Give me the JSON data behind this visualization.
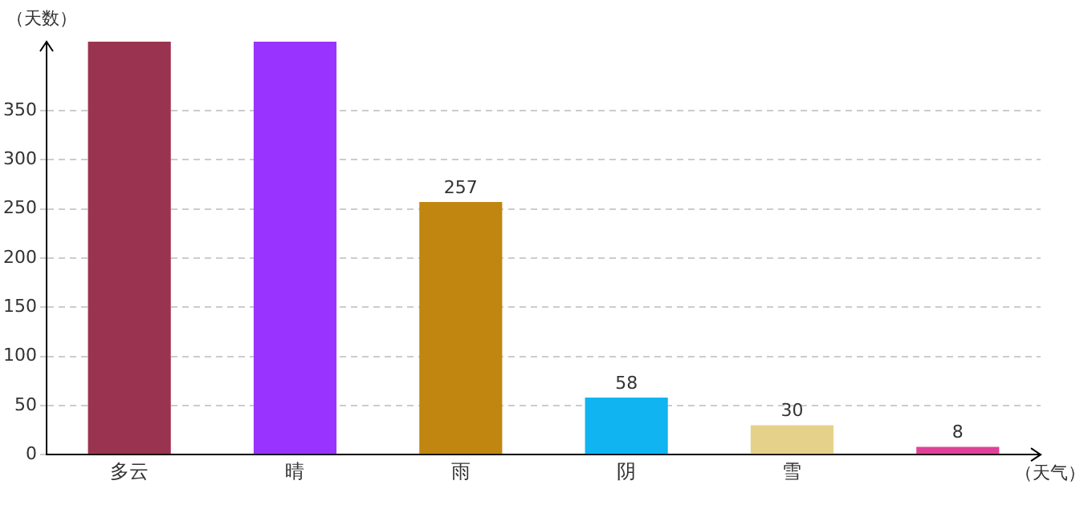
{
  "chart_data": {
    "type": "bar",
    "xlabel": "（天气）",
    "ylabel": "（天数）",
    "categories": [
      "多云",
      "晴",
      "雨",
      "阴",
      "雪",
      null
    ],
    "values": [
      420,
      420,
      257,
      58,
      30,
      8
    ],
    "value_labels": [
      null,
      null,
      "257",
      "58",
      "30",
      "8"
    ],
    "colors": [
      "#993350",
      "#9933ff",
      "#c0860f",
      "#10b4f0",
      "#e5d18a",
      "#e0409a"
    ],
    "ylim": [
      0,
      420
    ],
    "yticks": [
      0,
      50,
      100,
      150,
      200,
      250,
      300,
      350
    ],
    "grid": "y",
    "legend": false
  }
}
